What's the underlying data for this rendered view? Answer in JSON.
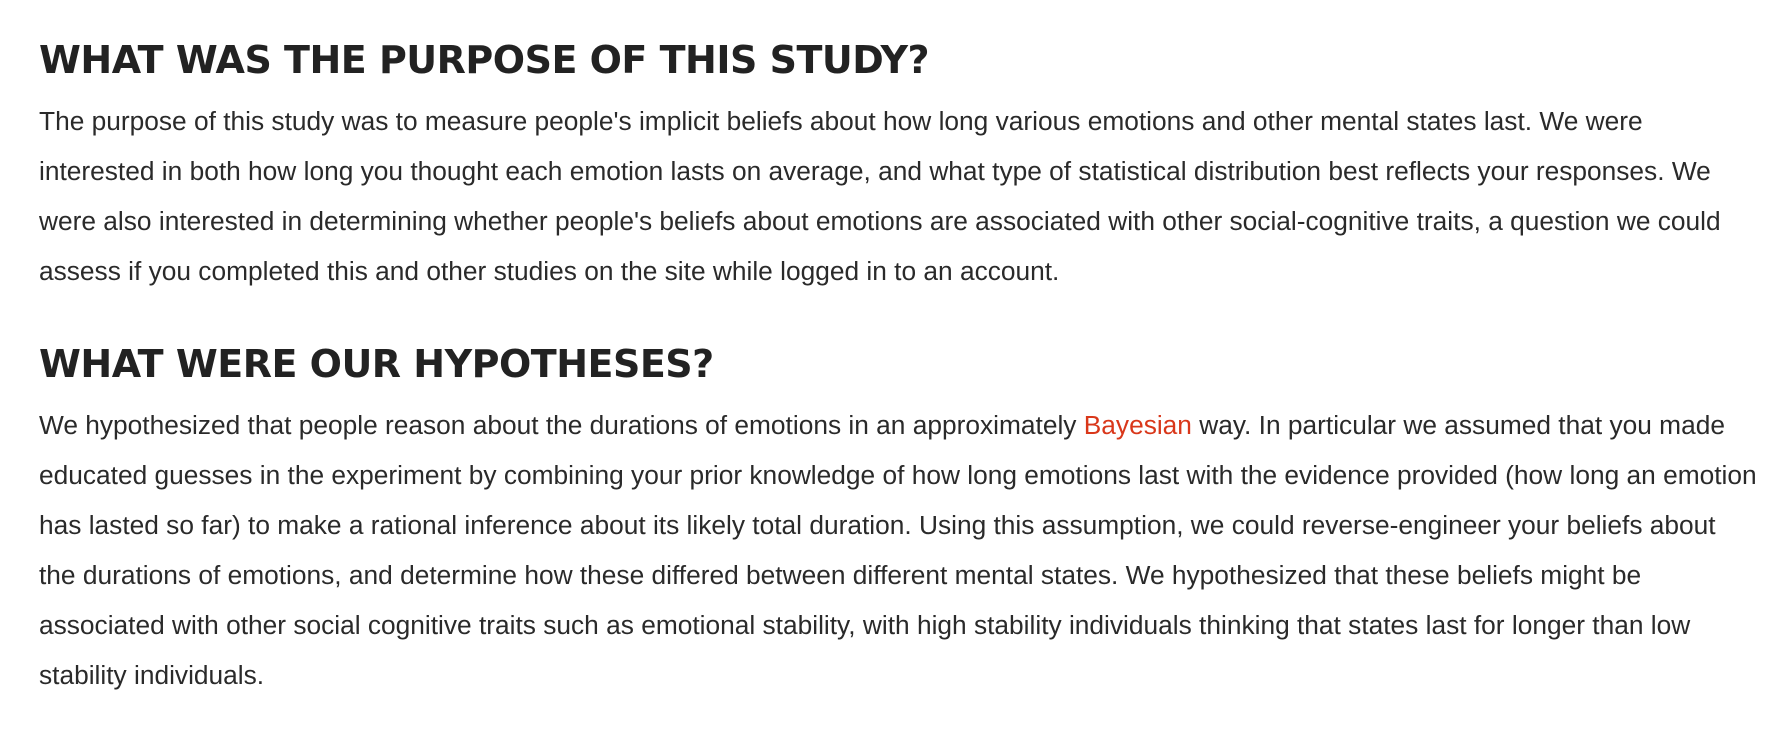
{
  "sections": [
    {
      "heading": "WHAT WAS THE PURPOSE OF THIS STUDY?",
      "paragraph": "The purpose of this study was to measure people's implicit beliefs about how long various emotions and other mental states last. We were interested in both how long you thought each emotion lasts on average, and what type of statistical distribution best reflects your responses. We were also interested in determining whether people's beliefs about emotions are associated with other social-cognitive traits, a question we could assess if you completed this and other studies on the site while logged in to an account."
    },
    {
      "heading": "WHAT WERE OUR HYPOTHESES?",
      "paragraph_before_link": "We hypothesized that people reason about the durations of emotions in an approximately ",
      "link_text": "Bayesian",
      "paragraph_after_link": " way. In particular we assumed that you made educated guesses in the experiment by combining your prior knowledge of how long emotions last with the evidence provided (how long an emotion has lasted so far) to make a rational inference about its likely total duration. Using this assumption, we could reverse-engineer your beliefs about the durations of emotions, and determine how these differed between different mental states. We hypothesized that these beliefs might be associated with other social cognitive traits such as emotional stability, with high stability individuals thinking that states last for longer than low stability individuals."
    }
  ],
  "colors": {
    "heading": "#222222",
    "body_text": "#2a2a2a",
    "link": "#d9371a",
    "background": "#ffffff"
  }
}
